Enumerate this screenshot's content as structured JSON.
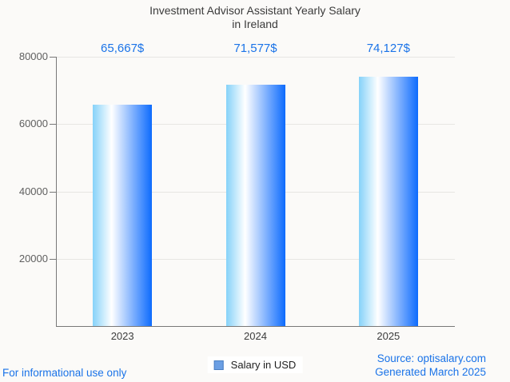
{
  "header": {
    "title_line1": "Investment Advisor Assistant Yearly Salary",
    "title_line2": "in Ireland"
  },
  "chart_data": {
    "type": "bar",
    "title": "Investment Advisor Assistant Yearly Salary in Ireland",
    "categories": [
      "2023",
      "2024",
      "2025"
    ],
    "series": [
      {
        "name": "Salary in USD",
        "values": [
          65667,
          71577,
          74127
        ]
      }
    ],
    "value_labels": [
      "65,667$",
      "71,577$",
      "74,127$"
    ],
    "xlabel": "",
    "ylabel": "",
    "ylim": [
      0,
      80000
    ],
    "yticks": [
      20000,
      40000,
      60000,
      80000
    ],
    "ytick_labels": [
      "20000",
      "40000",
      "60000",
      "80000"
    ],
    "grid": true,
    "legend_position": "bottom",
    "legend_label": "Salary in USD",
    "colors": {
      "bar_gradient_left": "#85d2f9",
      "bar_gradient_mid": "#ffffff",
      "bar_gradient_right": "#0d6bfd",
      "value_label": "#1a73e8",
      "axis_line": "#787878",
      "gridline": "#e7e6e3",
      "tick_label": "#5f5f5f",
      "category_label": "#3c3c3c",
      "legend_swatch_fill": "#6b9fe4",
      "legend_swatch_border": "#4a7fc2",
      "background": "#fbfaf8"
    }
  },
  "footer": {
    "left_note": "For informational use only",
    "source": "Source: optisalary.com",
    "generated": "Generated March 2025"
  }
}
